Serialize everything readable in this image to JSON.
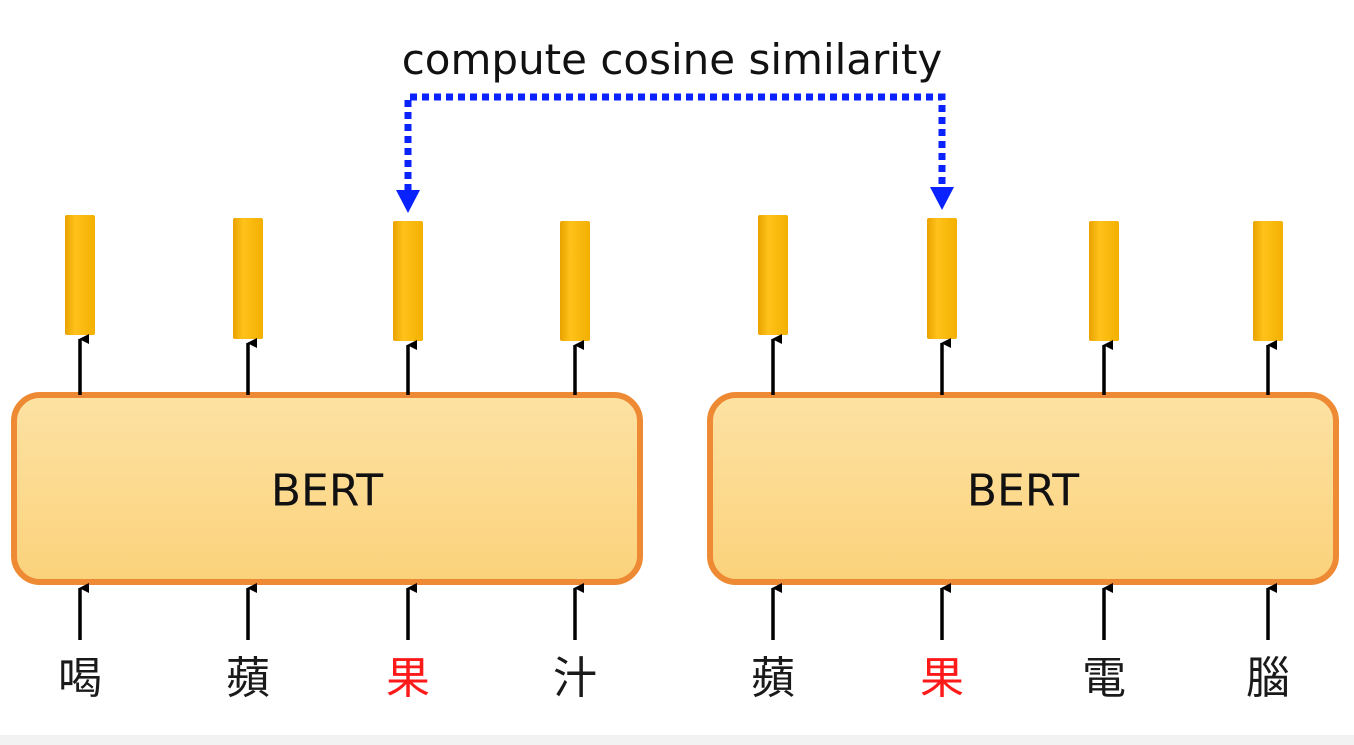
{
  "title": "compute cosine similarity",
  "colors": {
    "box_fill_top": "#fde2a3",
    "box_fill_bottom": "#fbd27b",
    "box_border": "#ee8a33",
    "vector_fill": "#f7b800",
    "highlight_token": "#ff1a1a",
    "normal_token": "#1a1a1a",
    "similarity_line": "#0a22ff"
  },
  "models": [
    {
      "label": "BERT",
      "tokens": [
        "喝",
        "蘋",
        "果",
        "汁"
      ],
      "highlight_index": 2
    },
    {
      "label": "BERT",
      "tokens": [
        "蘋",
        "果",
        "電",
        "腦"
      ],
      "highlight_index": 1
    }
  ]
}
